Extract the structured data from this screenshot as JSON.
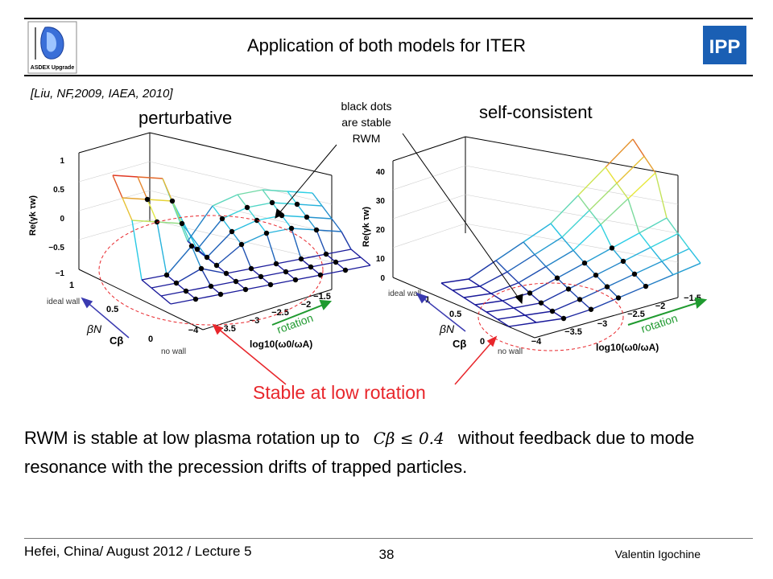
{
  "slide": {
    "title": "Application of both models for ITER",
    "citation": "[Liu, NF,2009, IAEA, 2010]",
    "logo_left_text": "ASDEX Upgrade",
    "logo_right_text": "IPP",
    "left_plot_title": "perturbative",
    "right_plot_title": "self-consistent",
    "annotation_lines": [
      "black dots",
      "are stable",
      "RWM"
    ],
    "stable_label": "Stable at low rotation",
    "body_part1": "RWM is stable at low plasma rotation up to",
    "formula": "Cβ ≤ 0.4",
    "body_part2": "without feedback due to mode resonance with the precession drifts of trapped particles.",
    "footer_left": "Hefei, China/ August 2012 / Lecture 5",
    "page_number": "38",
    "footer_right": "Valentin Igochine"
  },
  "plots": {
    "z_axis_label": "Re(γk τw)",
    "c_axis_label": "Cβ",
    "beta_symbol": "βN",
    "rotation_label": "rotation",
    "x_axis_label": "log10(ω0/ωA)",
    "ideal_wall": "ideal wall",
    "no_wall": "no wall",
    "left_z_ticks": [
      "1",
      "0.5",
      "0",
      "−0.5",
      "−1"
    ],
    "right_z_ticks": [
      "40",
      "30",
      "20",
      "10",
      "0"
    ],
    "c_ticks": [
      "1",
      "0.5",
      "0"
    ],
    "x_ticks": [
      "−4",
      "−3.5",
      "−3",
      "−2.5",
      "−2",
      "−1.5"
    ]
  },
  "colors": {
    "stable_highlight": "#e8262b",
    "rotation_arrow": "#1f9a2f",
    "beta_arrow": "#3a3ab0",
    "mesh_low": "#1a1a9a",
    "mesh_mid": "#2ad0e8",
    "mesh_high": "#e8e83a",
    "mesh_top": "#e02020"
  }
}
